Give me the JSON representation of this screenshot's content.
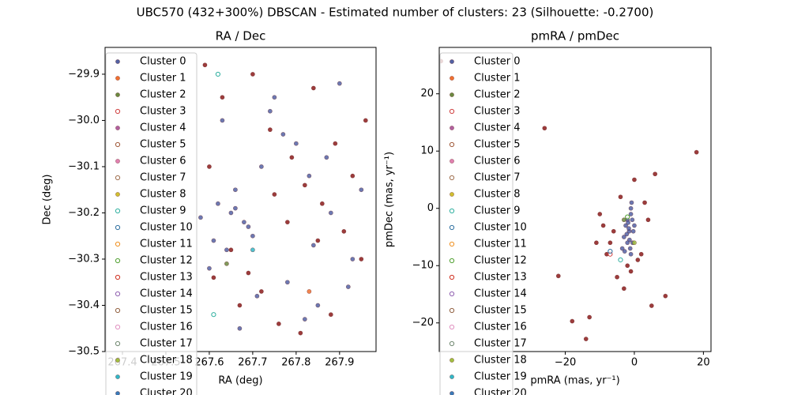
{
  "title": "UBC570 (432+300%) DBSCAN - Estimated number of clusters: 23 (Silhouette: -0.2700)",
  "chart_data": [
    {
      "type": "scatter",
      "title": "RA / Dec",
      "xlabel": "RA (deg)",
      "ylabel": "Dec (deg)",
      "xlim": [
        267.36,
        267.984
      ],
      "ylim": [
        -30.5,
        -29.842
      ],
      "xticks": [
        267.4,
        267.5,
        267.6,
        267.7,
        267.8,
        267.9
      ],
      "yticks": [
        {
          "value": -29.9,
          "label": "−29.9"
        },
        {
          "value": -30.0,
          "label": "−30.0"
        },
        {
          "value": -30.1,
          "label": "−30.1"
        },
        {
          "value": -30.2,
          "label": "−30.2"
        },
        {
          "value": -30.3,
          "label": "−30.3"
        },
        {
          "value": -30.4,
          "label": "−30.4"
        },
        {
          "value": -30.5,
          "label": "−30.5"
        }
      ],
      "series": [
        {
          "color": "#8b1a1a",
          "filled": true,
          "x": [
            267.59,
            267.63,
            267.7,
            267.74,
            267.79,
            267.82,
            267.86,
            267.91,
            267.95,
            267.61,
            267.67,
            267.76,
            267.81,
            267.89,
            267.93,
            267.72,
            267.84,
            267.65,
            267.88,
            267.78,
            267.6,
            267.96,
            267.69,
            267.85,
            267.75
          ],
          "y": [
            -29.88,
            -29.95,
            -29.9,
            -30.02,
            -30.08,
            -30.14,
            -30.18,
            -30.24,
            -30.3,
            -30.34,
            -30.4,
            -30.44,
            -30.46,
            -30.05,
            -30.12,
            -30.37,
            -29.93,
            -30.28,
            -30.42,
            -30.22,
            -30.1,
            -30.0,
            -30.33,
            -30.26,
            -30.16
          ]
        },
        {
          "name": "Cluster 0",
          "color": "#5262a4",
          "filled": true,
          "x": [
            267.65,
            267.68,
            267.62,
            267.7,
            267.66,
            267.64,
            267.72,
            267.6,
            267.75,
            267.8,
            267.85,
            267.9,
            267.93,
            267.78,
            267.83,
            267.88,
            267.63,
            267.67,
            267.71,
            267.69,
            267.58,
            267.95,
            267.82,
            267.74,
            267.87,
            267.61,
            267.66,
            267.92,
            267.77,
            267.84
          ],
          "y": [
            -30.2,
            -30.22,
            -30.18,
            -30.25,
            -30.15,
            -30.28,
            -30.1,
            -30.32,
            -29.95,
            -30.05,
            -30.4,
            -29.92,
            -30.3,
            -30.35,
            -30.12,
            -30.2,
            -30.0,
            -30.45,
            -30.38,
            -30.23,
            -30.21,
            -30.15,
            -30.43,
            -29.98,
            -30.08,
            -30.26,
            -30.19,
            -30.36,
            -30.03,
            -30.27
          ]
        },
        {
          "name": "Cluster 1",
          "color": "#f07030",
          "filled": true,
          "x": [
            267.83
          ],
          "y": [
            -30.37
          ]
        },
        {
          "name": "Cluster 2",
          "color": "#6a8a40",
          "filled": true,
          "x": [
            267.64
          ],
          "y": [
            -30.31
          ]
        },
        {
          "name": "Cluster 3",
          "color": "#d04040",
          "filled": false,
          "x": [],
          "y": []
        },
        {
          "name": "Cluster 4",
          "color": "#b060a0",
          "filled": true,
          "x": [],
          "y": []
        },
        {
          "name": "Cluster 5",
          "color": "#a05a3a",
          "filled": false,
          "x": [],
          "y": []
        },
        {
          "name": "Cluster 6",
          "color": "#e080b0",
          "filled": true,
          "x": [],
          "y": []
        },
        {
          "name": "Cluster 7",
          "color": "#a07050",
          "filled": false,
          "x": [],
          "y": []
        },
        {
          "name": "Cluster 8",
          "color": "#d0c030",
          "filled": true,
          "x": [],
          "y": []
        },
        {
          "name": "Cluster 9",
          "color": "#30b0a0",
          "filled": false,
          "x": [
            267.62,
            267.61
          ],
          "y": [
            -29.9,
            -30.42
          ]
        },
        {
          "name": "Cluster 10",
          "color": "#3070a0",
          "filled": false,
          "x": [],
          "y": []
        },
        {
          "name": "Cluster 11",
          "color": "#f09020",
          "filled": false,
          "x": [],
          "y": []
        },
        {
          "name": "Cluster 12",
          "color": "#50a030",
          "filled": false,
          "x": [],
          "y": []
        },
        {
          "name": "Cluster 13",
          "color": "#d03020",
          "filled": false,
          "x": [],
          "y": []
        },
        {
          "name": "Cluster 14",
          "color": "#9060b0",
          "filled": false,
          "x": [],
          "y": []
        },
        {
          "name": "Cluster 15",
          "color": "#906040",
          "filled": false,
          "x": [],
          "y": []
        },
        {
          "name": "Cluster 16",
          "color": "#e090c0",
          "filled": false,
          "x": [],
          "y": []
        },
        {
          "name": "Cluster 17",
          "color": "#708870",
          "filled": false,
          "x": [],
          "y": []
        },
        {
          "name": "Cluster 18",
          "color": "#a0c040",
          "filled": true,
          "x": [],
          "y": []
        },
        {
          "name": "Cluster 19",
          "color": "#30b8c8",
          "filled": true,
          "x": [
            267.7
          ],
          "y": [
            -30.28
          ]
        },
        {
          "name": "Cluster 20",
          "color": "#3a7ab8",
          "filled": true,
          "x": [],
          "y": []
        }
      ]
    },
    {
      "type": "scatter",
      "title": "pmRA / pmDec",
      "xlabel": "pmRA (mas, yr⁻¹)",
      "ylabel": "pmDec (mas, yr⁻¹)",
      "xlim": [
        -56.5,
        22.2
      ],
      "ylim": [
        -25.0,
        28.1
      ],
      "xticks": [
        {
          "value": -20,
          "label": "−20"
        },
        0,
        20
      ],
      "yticks": [
        {
          "value": -20,
          "label": "−20"
        },
        {
          "value": -10,
          "label": "−10"
        },
        0,
        10,
        20
      ],
      "series": [
        {
          "color": "#8b1a1a",
          "filled": true,
          "x": [
            -56,
            -26,
            18,
            -14,
            -18,
            -13,
            -22,
            -10,
            5,
            9,
            -8,
            -6,
            -4,
            -2,
            0,
            2,
            4,
            -5,
            -3,
            1,
            3,
            -7,
            -1,
            6,
            -9,
            -11
          ],
          "y": [
            25.7,
            14,
            9.8,
            -22.8,
            -19.7,
            -19,
            -11.8,
            -1,
            -17,
            -15.3,
            -8,
            -4,
            2,
            -10,
            5,
            -8,
            -2,
            -12,
            -14,
            -9,
            1,
            -6,
            -11,
            6,
            -3,
            -6
          ]
        },
        {
          "name": "Cluster 0",
          "color": "#5262a4",
          "filled": true,
          "x": [
            -1,
            -2,
            -1.5,
            -0.5,
            -2.5,
            -1,
            -3,
            0,
            -1.2,
            -1.8,
            -0.8,
            -2.2,
            -1.4,
            -0.6,
            -2.8,
            -1.6,
            -1,
            -2,
            -0.3,
            -3.5
          ],
          "y": [
            0,
            -2,
            -4,
            -6,
            -3,
            -1,
            -5,
            -3,
            -7,
            -2.5,
            1,
            -4.5,
            -5.5,
            -2,
            -7.5,
            -3.5,
            -8,
            -6,
            -4,
            -7
          ]
        },
        {
          "name": "Cluster 1",
          "color": "#f07030",
          "filled": true,
          "x": [],
          "y": []
        },
        {
          "name": "Cluster 2",
          "color": "#6a8a40",
          "filled": true,
          "x": [
            -3
          ],
          "y": [
            -2
          ]
        },
        {
          "name": "Cluster 3",
          "color": "#d04040",
          "filled": false,
          "x": [
            -7
          ],
          "y": [
            -8
          ]
        },
        {
          "name": "Cluster 4",
          "color": "#b060a0",
          "filled": true,
          "x": [],
          "y": []
        },
        {
          "name": "Cluster 5",
          "color": "#a05a3a",
          "filled": false,
          "x": [],
          "y": []
        },
        {
          "name": "Cluster 6",
          "color": "#e080b0",
          "filled": true,
          "x": [],
          "y": []
        },
        {
          "name": "Cluster 7",
          "color": "#a07050",
          "filled": false,
          "x": [],
          "y": []
        },
        {
          "name": "Cluster 8",
          "color": "#d0c030",
          "filled": true,
          "x": [],
          "y": []
        },
        {
          "name": "Cluster 9",
          "color": "#30b0a0",
          "filled": false,
          "x": [
            -4
          ],
          "y": [
            -9
          ]
        },
        {
          "name": "Cluster 10",
          "color": "#3070a0",
          "filled": false,
          "x": [
            -7
          ],
          "y": [
            -7.5
          ]
        },
        {
          "name": "Cluster 11",
          "color": "#f09020",
          "filled": false,
          "x": [],
          "y": []
        },
        {
          "name": "Cluster 12",
          "color": "#50a030",
          "filled": false,
          "x": [
            -2
          ],
          "y": [
            -1.5
          ]
        },
        {
          "name": "Cluster 13",
          "color": "#d03020",
          "filled": false,
          "x": [],
          "y": []
        },
        {
          "name": "Cluster 14",
          "color": "#9060b0",
          "filled": false,
          "x": [],
          "y": []
        },
        {
          "name": "Cluster 15",
          "color": "#906040",
          "filled": false,
          "x": [],
          "y": []
        },
        {
          "name": "Cluster 16",
          "color": "#e090c0",
          "filled": false,
          "x": [],
          "y": []
        },
        {
          "name": "Cluster 17",
          "color": "#708870",
          "filled": false,
          "x": [],
          "y": []
        },
        {
          "name": "Cluster 18",
          "color": "#a0c040",
          "filled": true,
          "x": [
            0
          ],
          "y": [
            -6
          ]
        },
        {
          "name": "Cluster 19",
          "color": "#30b8c8",
          "filled": true,
          "x": [],
          "y": []
        },
        {
          "name": "Cluster 20",
          "color": "#3a7ab8",
          "filled": true,
          "x": [],
          "y": []
        }
      ]
    }
  ]
}
